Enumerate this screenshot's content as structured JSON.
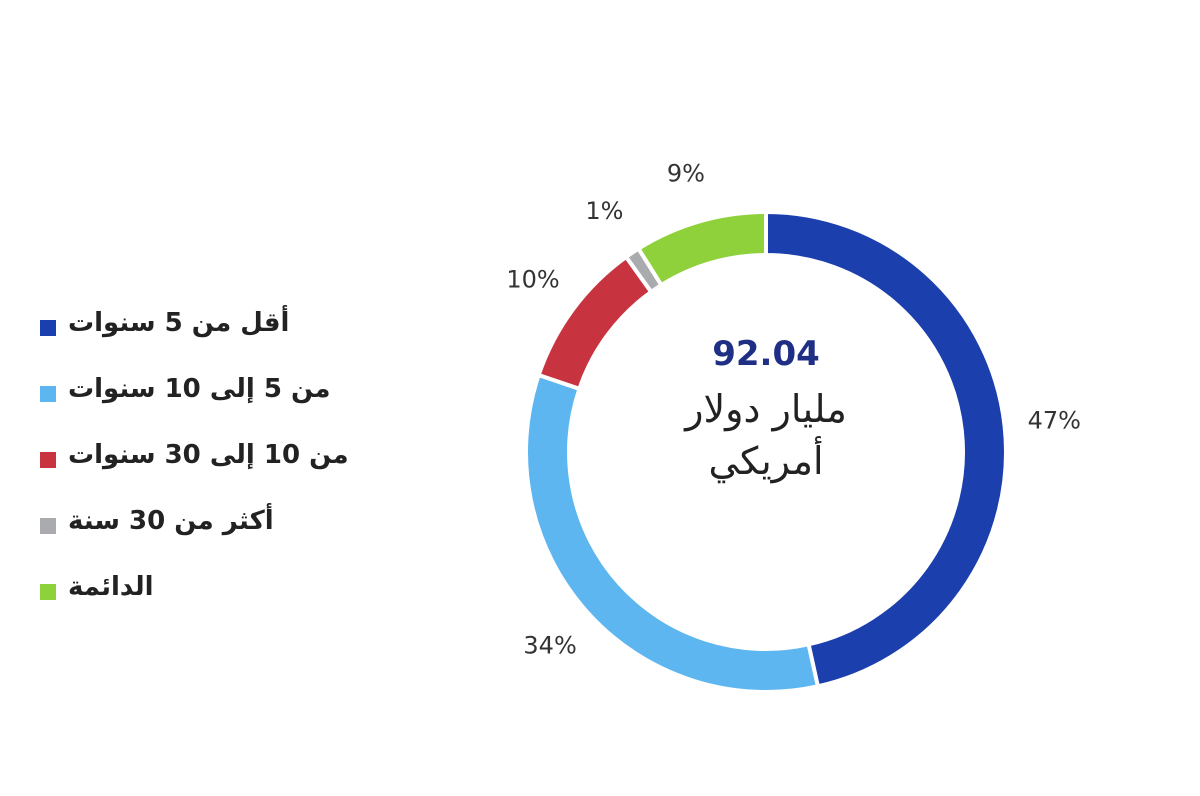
{
  "colors": {
    "lt5": "#1c3fae",
    "5to10": "#5db6f0",
    "10to30": "#c7343f",
    "gt30": "#a9abae",
    "perpetual": "#8fd13a",
    "center_value": "#1f2f86",
    "center_text": "#222222"
  },
  "chart_data": {
    "type": "pie",
    "donut": true,
    "categories": [
      "أقل من 5 سنوات",
      "من 5 إلى 10 سنوات",
      "من 10 إلى 30 سنوات",
      "أكثر من 30 سنة",
      "الدائمة"
    ],
    "values": [
      47,
      34,
      10,
      1,
      9
    ],
    "value_labels": [
      "47%",
      "34%",
      "10%",
      "1%",
      "9%"
    ],
    "color_keys": [
      "lt5",
      "5to10",
      "10to30",
      "gt30",
      "perpetual"
    ],
    "center_value": "92.04",
    "center_line1": "مليار دولار",
    "center_line2": "أمريكي",
    "legend_position": "left"
  }
}
